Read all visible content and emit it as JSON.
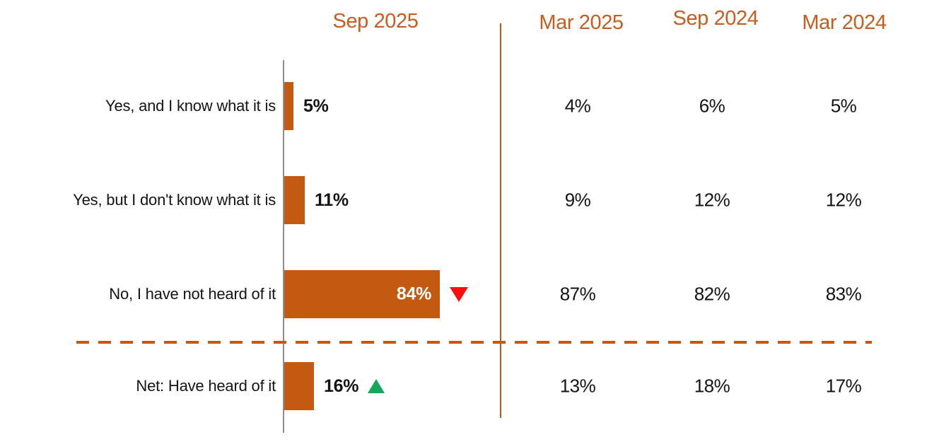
{
  "colors": {
    "bar_orange": "#C45A11",
    "header_orange": "#C85C1E",
    "line_orange": "#C45A11",
    "axis_gray": "#8C8C8C",
    "sig_red": "#FB0D10",
    "sig_green": "#14A75C",
    "text_black": "#141414",
    "bar_label_white": "#FFFFFF"
  },
  "chart_data": {
    "type": "bar",
    "orientation": "horizontal",
    "unit": "%",
    "xlim": [
      0,
      100
    ],
    "grid": false,
    "legend_position": "column-headers-top",
    "categories": [
      "Yes, and I know what it is",
      "Yes, but I don't know what it is",
      "No, I have not heard of it",
      "Net: Have heard of it"
    ],
    "series": [
      {
        "name": "Sep 2025",
        "values": [
          5,
          11,
          84,
          16
        ],
        "display": [
          "5%",
          "11%",
          "84%",
          "16%"
        ]
      },
      {
        "name": "Mar 2025",
        "values": [
          4,
          9,
          87,
          13
        ],
        "display": [
          "4%",
          "9%",
          "87%",
          "13%"
        ]
      },
      {
        "name": "Sep 2024",
        "values": [
          6,
          12,
          82,
          18
        ],
        "display": [
          "6%",
          "12%",
          "82%",
          "18%"
        ]
      },
      {
        "name": "Mar 2024",
        "values": [
          5,
          12,
          83,
          17
        ],
        "display": [
          "5%",
          "12%",
          "83%",
          "17%"
        ]
      }
    ],
    "annotations": [
      {
        "category": "No, I have not heard of it",
        "series": "Sep 2025",
        "marker": "filled-down-triangle",
        "color_key": "sig_red"
      },
      {
        "category": "Net: Have heard of it",
        "series": "Sep 2025",
        "marker": "filled-up-triangle",
        "color_key": "sig_green"
      },
      {
        "type": "dashed-separator-line",
        "before_category": "Net: Have heard of it",
        "color_key": "line_orange"
      },
      {
        "type": "vertical-divider-line",
        "after_series": "Sep 2025",
        "color_key": "line_orange"
      }
    ]
  }
}
